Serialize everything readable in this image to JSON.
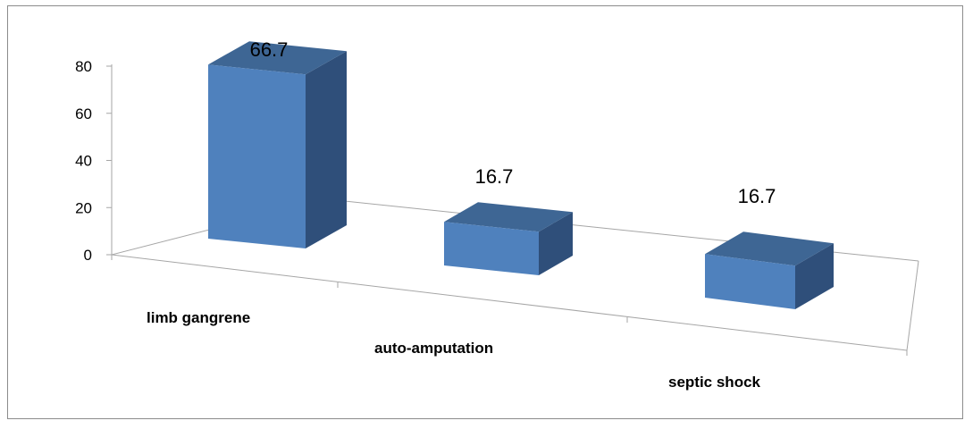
{
  "chart_data": {
    "type": "bar",
    "style": "3d-column",
    "categories": [
      "limb gangrene",
      "auto-amputation",
      "septic shock"
    ],
    "values": [
      66.7,
      16.7,
      16.7
    ],
    "data_labels": [
      "66.7",
      "16.7",
      "16.7"
    ],
    "y_ticks": [
      "0",
      "20",
      "40",
      "60",
      "80"
    ],
    "ylim": [
      0,
      80
    ],
    "grid": false,
    "legend": "none",
    "colors": {
      "front": "#4f81bd",
      "top": "#3e6694",
      "side": "#2f4f7a",
      "axis": "#a6a6a6",
      "frame": "#8c8c8c"
    }
  }
}
